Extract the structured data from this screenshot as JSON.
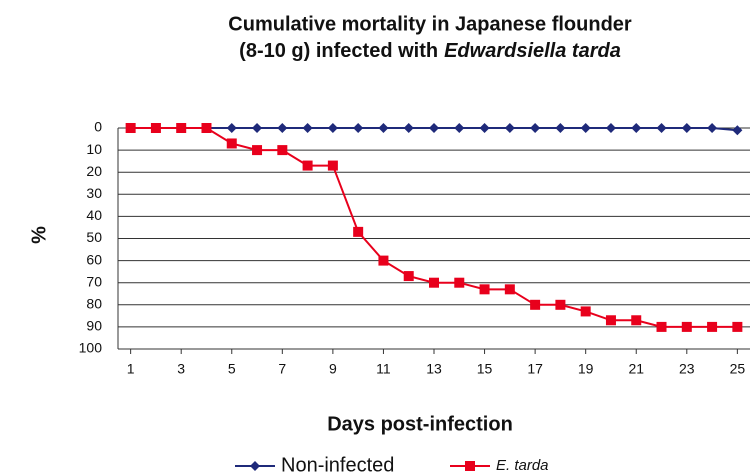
{
  "chart_data": {
    "type": "line",
    "title": [
      "Cumulative mortality in Japanese flounder",
      "(8-10 g) infected with",
      "Edwardsiella tarda"
    ],
    "xlabel": "Days post-infection",
    "ylabel": "%",
    "x": [
      1,
      2,
      3,
      4,
      5,
      6,
      7,
      8,
      9,
      10,
      11,
      12,
      13,
      14,
      15,
      16,
      17,
      18,
      19,
      20,
      21,
      22,
      23,
      24,
      25
    ],
    "series": [
      {
        "name": "Non-infected",
        "color": "#1f2a7a",
        "marker": "diamond",
        "values": [
          0,
          0,
          0,
          0,
          0,
          0,
          0,
          0,
          0,
          0,
          0,
          0,
          0,
          0,
          0,
          0,
          0,
          0,
          0,
          0,
          0,
          0,
          0,
          0,
          1
        ]
      },
      {
        "name": "E. tarda",
        "color": "#e8001c",
        "marker": "square",
        "values": [
          0,
          0,
          0,
          0,
          7,
          10,
          10,
          17,
          17,
          47,
          60,
          67,
          70,
          70,
          73,
          73,
          80,
          80,
          83,
          87,
          87,
          90,
          90,
          90,
          90
        ]
      }
    ],
    "xlim": [
      0.5,
      25.5
    ],
    "xticks": [
      1,
      3,
      5,
      7,
      9,
      11,
      13,
      15,
      17,
      19,
      21,
      23,
      25
    ],
    "ylim": [
      0,
      100
    ],
    "yticks": [
      0,
      10,
      20,
      30,
      40,
      50,
      60,
      70,
      80,
      90,
      100
    ],
    "y_inverted": true,
    "grid": true,
    "legend": "bottom"
  }
}
